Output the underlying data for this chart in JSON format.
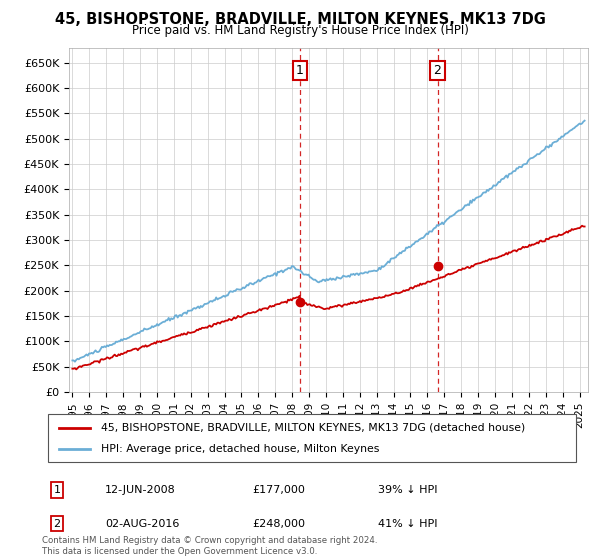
{
  "title": "45, BISHOPSTONE, BRADVILLE, MILTON KEYNES, MK13 7DG",
  "subtitle": "Price paid vs. HM Land Registry's House Price Index (HPI)",
  "ylabel_ticks": [
    "£0",
    "£50K",
    "£100K",
    "£150K",
    "£200K",
    "£250K",
    "£300K",
    "£350K",
    "£400K",
    "£450K",
    "£500K",
    "£550K",
    "£600K",
    "£650K"
  ],
  "ytick_vals": [
    0,
    50000,
    100000,
    150000,
    200000,
    250000,
    300000,
    350000,
    400000,
    450000,
    500000,
    550000,
    600000,
    650000
  ],
  "ylim": [
    0,
    680000
  ],
  "xlim_start": 1994.8,
  "xlim_end": 2025.5,
  "hpi_color": "#6baed6",
  "price_color": "#cc0000",
  "marker1_x": 2008.45,
  "marker1_y": 177000,
  "marker2_x": 2016.6,
  "marker2_y": 248000,
  "marker1_date": "12-JUN-2008",
  "marker1_price": "£177,000",
  "marker1_pct": "39% ↓ HPI",
  "marker2_date": "02-AUG-2016",
  "marker2_price": "£248,000",
  "marker2_pct": "41% ↓ HPI",
  "legend_label1": "45, BISHOPSTONE, BRADVILLE, MILTON KEYNES, MK13 7DG (detached house)",
  "legend_label2": "HPI: Average price, detached house, Milton Keynes",
  "footnote": "Contains HM Land Registry data © Crown copyright and database right 2024.\nThis data is licensed under the Open Government Licence v3.0.",
  "background_color": "#ffffff",
  "grid_color": "#cccccc"
}
